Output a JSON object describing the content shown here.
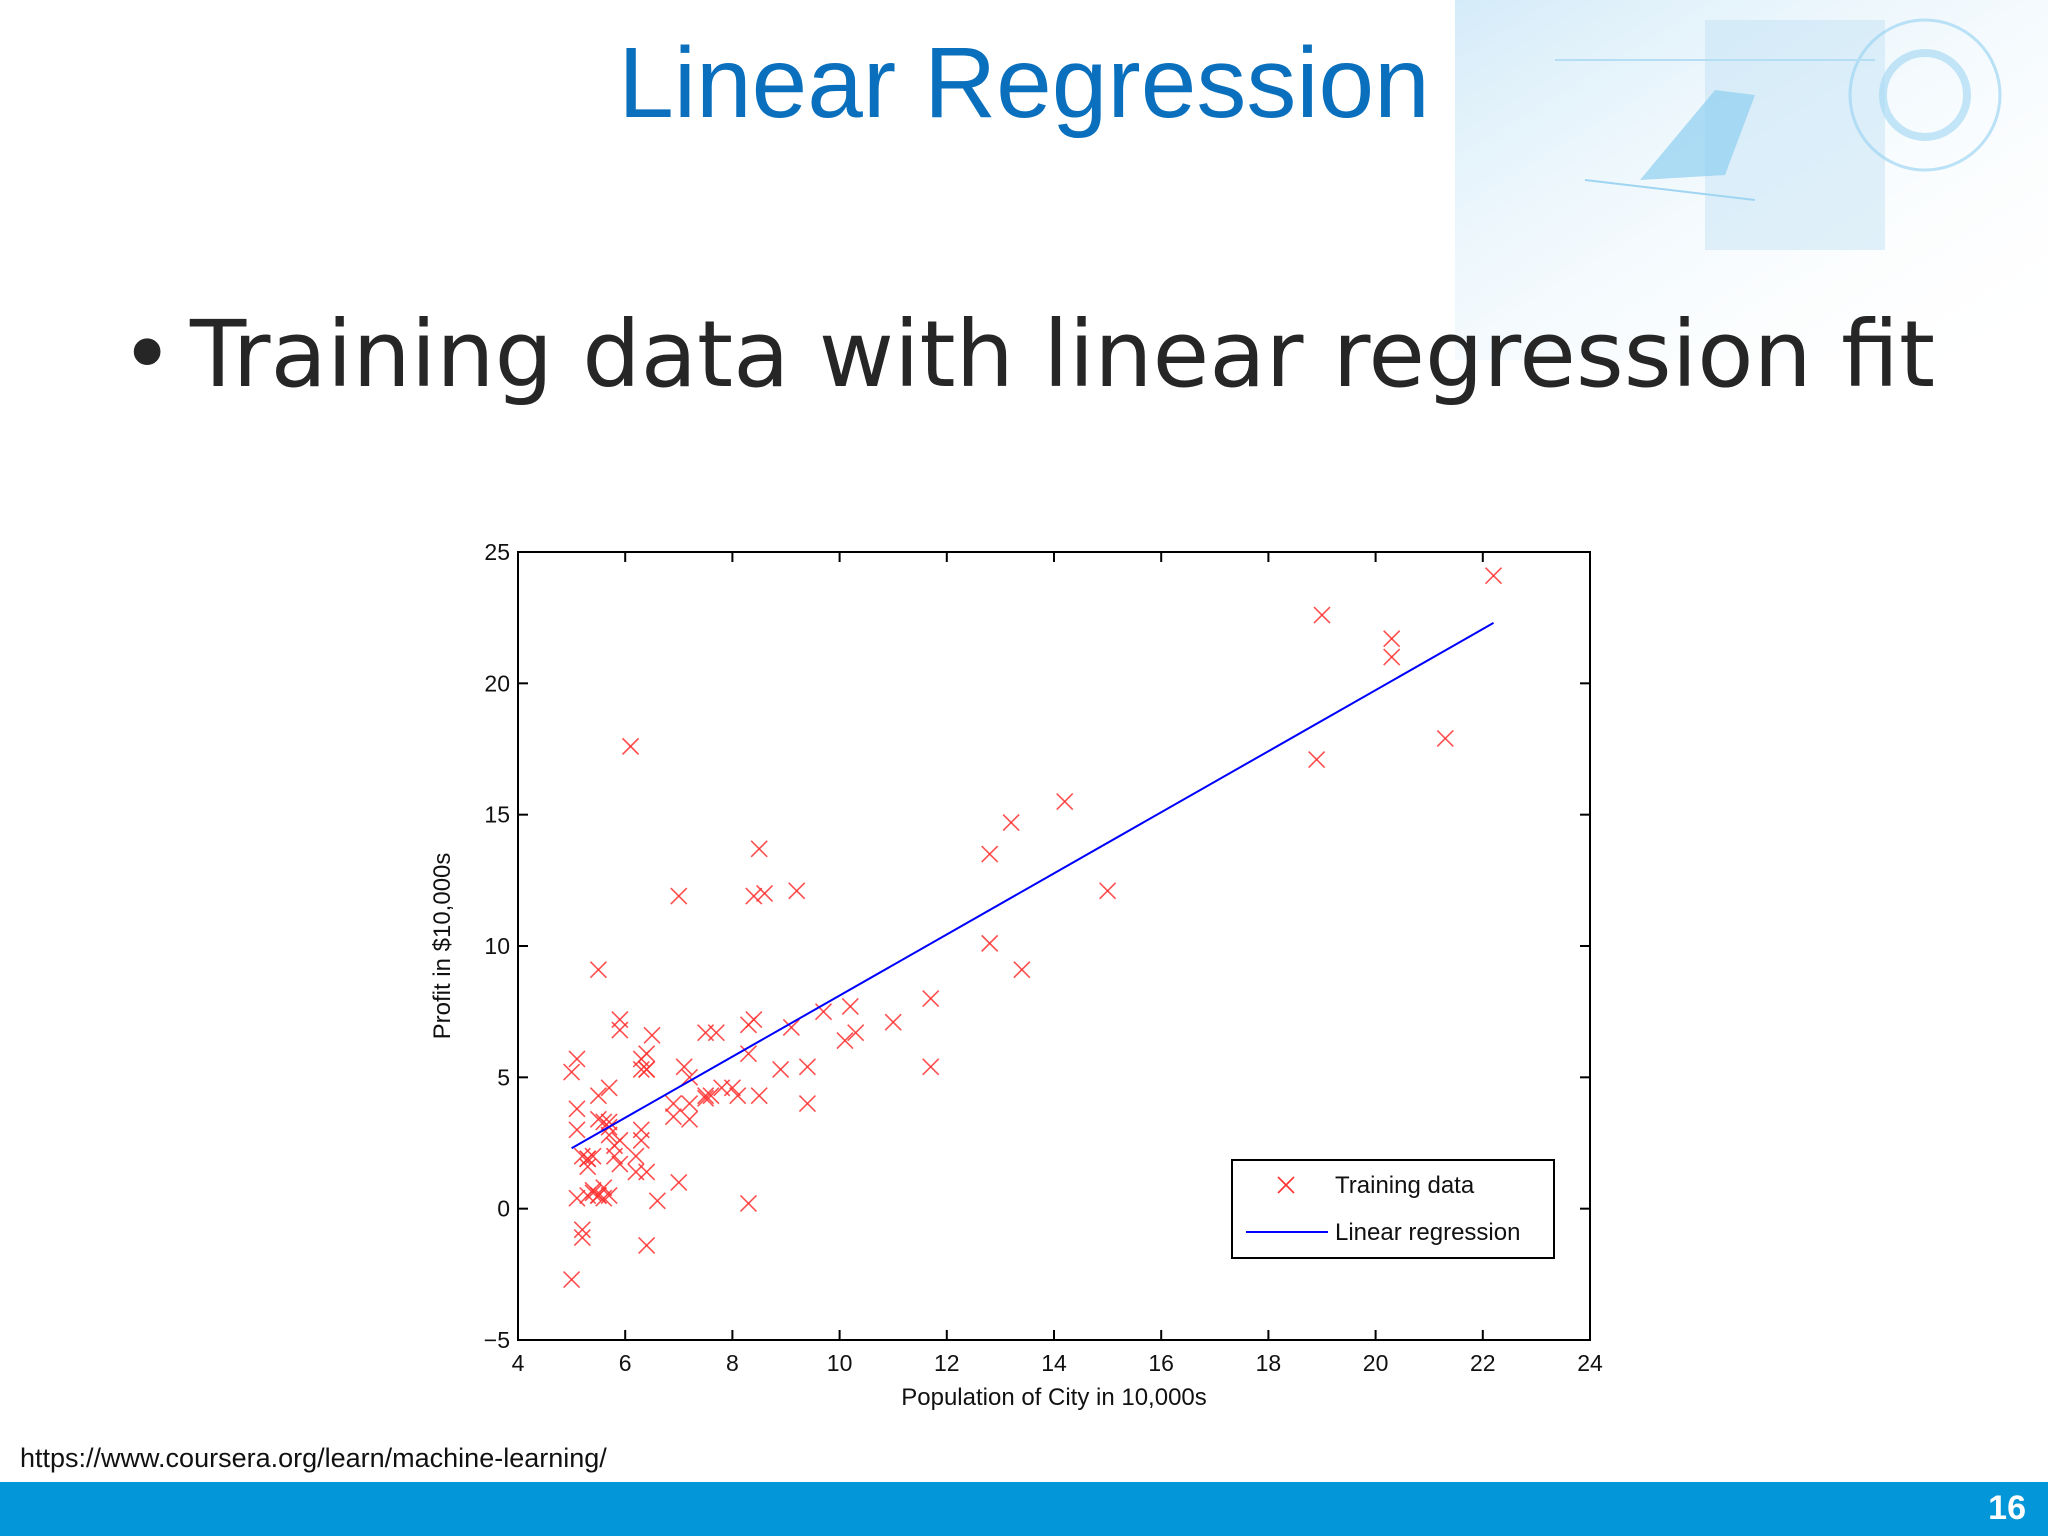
{
  "slide": {
    "title": "Linear Regression",
    "bullet": "Training data with linear regression fit",
    "source": "https://www.coursera.org/learn/machine-learning/",
    "page_number": "16",
    "colors": {
      "title": "#0a70bd",
      "footer": "#0396d8",
      "data": "#ff3030",
      "fit": "#0000ff"
    }
  },
  "chart_data": {
    "type": "scatter",
    "xlabel": "Population of City in 10,000s",
    "ylabel": "Profit in $10,000s",
    "xlim": [
      4,
      24
    ],
    "ylim": [
      -5,
      25
    ],
    "xticks": [
      4,
      6,
      8,
      10,
      12,
      14,
      16,
      18,
      20,
      22,
      24
    ],
    "yticks": [
      -5,
      0,
      5,
      10,
      15,
      20,
      25
    ],
    "legend_position": "bottom-right",
    "series": [
      {
        "name": "Training data",
        "marker": "x",
        "color": "#ff3030",
        "points": [
          [
            6.1,
            17.6
          ],
          [
            5.5,
            9.1
          ],
          [
            8.5,
            13.7
          ],
          [
            7.0,
            11.9
          ],
          [
            5.9,
            6.8
          ],
          [
            8.4,
            11.9
          ],
          [
            5.6,
            3.3
          ],
          [
            8.6,
            12.0
          ],
          [
            6.5,
            6.6
          ],
          [
            5.1,
            3.8
          ],
          [
            5.7,
            3.3
          ],
          [
            14.2,
            15.5
          ],
          [
            5.7,
            3.1
          ],
          [
            8.4,
            7.2
          ],
          [
            6.4,
            5.3
          ],
          [
            5.4,
            0.6
          ],
          [
            6.3,
            5.3
          ],
          [
            5.1,
            5.7
          ],
          [
            11.7,
            8.0
          ],
          [
            5.5,
            3.4
          ],
          [
            5.5,
            4.3
          ],
          [
            5.9,
            7.2
          ],
          [
            8.3,
            7.0
          ],
          [
            7.5,
            4.2
          ],
          [
            8.0,
            4.6
          ],
          [
            5.5,
            0.5
          ],
          [
            8.9,
            5.3
          ],
          [
            5.9,
            1.7
          ],
          [
            10.1,
            6.4
          ],
          [
            5.3,
            0.5
          ],
          [
            5.8,
            2.0
          ],
          [
            5.0,
            -2.7
          ],
          [
            6.6,
            0.3
          ],
          [
            6.4,
            -1.4
          ],
          [
            5.3,
            1.6
          ],
          [
            7.2,
            3.4
          ],
          [
            7.5,
            4.3
          ],
          [
            6.3,
            5.7
          ],
          [
            8.1,
            4.3
          ],
          [
            5.0,
            5.2
          ],
          [
            5.1,
            3.0
          ],
          [
            5.4,
            2.0
          ],
          [
            9.2,
            12.1
          ],
          [
            12.8,
            10.1
          ],
          [
            20.3,
            21.7
          ],
          [
            18.9,
            17.1
          ],
          [
            20.3,
            21.0
          ],
          [
            19.0,
            22.6
          ],
          [
            22.2,
            24.1
          ],
          [
            21.3,
            17.9
          ],
          [
            13.4,
            9.1
          ],
          [
            13.2,
            14.7
          ],
          [
            15.0,
            12.1
          ],
          [
            11.7,
            5.4
          ],
          [
            7.2,
            5.0
          ],
          [
            5.2,
            -0.8
          ],
          [
            5.7,
            2.8
          ],
          [
            6.4,
            5.9
          ],
          [
            5.7,
            4.6
          ],
          [
            6.4,
            1.4
          ],
          [
            5.1,
            0.4
          ],
          [
            6.2,
            1.4
          ],
          [
            6.9,
            4.0
          ],
          [
            5.6,
            0.8
          ],
          [
            9.4,
            4.0
          ],
          [
            9.1,
            6.9
          ],
          [
            7.6,
            4.3
          ],
          [
            5.9,
            2.6
          ],
          [
            8.3,
            0.2
          ],
          [
            8.3,
            5.9
          ],
          [
            7.0,
            1.0
          ],
          [
            9.7,
            7.5
          ],
          [
            7.8,
            4.6
          ],
          [
            6.4,
            5.3
          ],
          [
            5.2,
            -1.1
          ],
          [
            5.8,
            2.4
          ],
          [
            6.9,
            3.5
          ],
          [
            7.5,
            6.7
          ],
          [
            5.7,
            0.5
          ],
          [
            6.3,
            3.0
          ],
          [
            5.3,
            1.9
          ],
          [
            11.0,
            7.1
          ],
          [
            10.2,
            7.7
          ],
          [
            5.5,
            0.5
          ],
          [
            9.4,
            5.4
          ],
          [
            5.6,
            0.4
          ],
          [
            6.3,
            2.6
          ],
          [
            7.7,
            6.7
          ],
          [
            7.1,
            5.4
          ],
          [
            5.2,
            2.0
          ],
          [
            8.5,
            4.3
          ],
          [
            12.8,
            13.5
          ],
          [
            5.4,
            0.7
          ],
          [
            5.3,
            1.9
          ],
          [
            10.3,
            6.7
          ],
          [
            6.2,
            2.0
          ],
          [
            7.2,
            4.0
          ]
        ]
      },
      {
        "name": "Linear regression",
        "marker": "line",
        "color": "#0000ff",
        "points": [
          [
            5.0,
            2.3
          ],
          [
            22.2,
            22.3
          ]
        ]
      }
    ]
  }
}
